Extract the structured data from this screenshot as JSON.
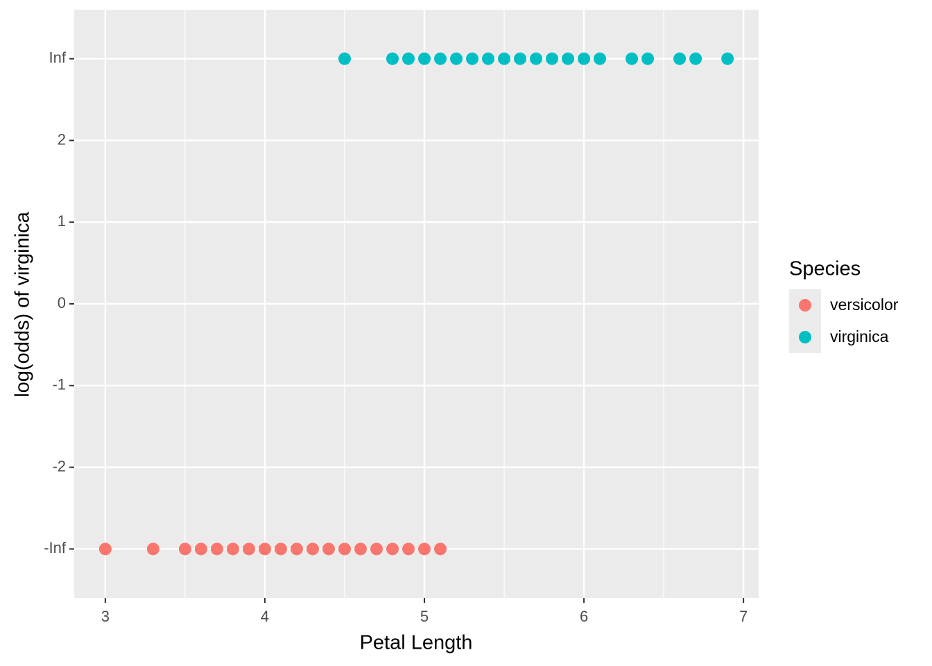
{
  "chart_data": {
    "type": "scatter",
    "x_label": "Petal Length",
    "y_label": "log(odds) of virginica",
    "legend_title": "Species",
    "legend_position": "right",
    "grid": true,
    "xlim": [
      2.805,
      7.095
    ],
    "xticks": [
      3,
      4,
      5,
      6,
      7
    ],
    "xminor": [
      3.5,
      4.5,
      5.5,
      6.5
    ],
    "ylim": [
      -3.6,
      3.6
    ],
    "yticks": [
      {
        "value": -3,
        "label": "-Inf"
      },
      -2,
      -1,
      0,
      1,
      2,
      {
        "value": 3,
        "label": "Inf"
      }
    ],
    "series": [
      {
        "name": "versicolor",
        "color": "#F8766D",
        "x": [
          3.0,
          3.3,
          3.5,
          3.6,
          3.7,
          3.8,
          3.9,
          4.0,
          4.1,
          4.2,
          4.3,
          4.4,
          4.5,
          4.6,
          4.7,
          4.8,
          4.9,
          5.0,
          5.1
        ],
        "values": [
          -3,
          -3,
          -3,
          -3,
          -3,
          -3,
          -3,
          -3,
          -3,
          -3,
          -3,
          -3,
          -3,
          -3,
          -3,
          -3,
          -3,
          -3,
          -3
        ]
      },
      {
        "name": "virginica",
        "color": "#00BFC4",
        "x": [
          4.5,
          4.8,
          4.9,
          5.0,
          5.1,
          5.2,
          5.3,
          5.4,
          5.5,
          5.6,
          5.7,
          5.8,
          5.9,
          6.0,
          6.1,
          6.3,
          6.4,
          6.6,
          6.7,
          6.9
        ],
        "values": [
          3,
          3,
          3,
          3,
          3,
          3,
          3,
          3,
          3,
          3,
          3,
          3,
          3,
          3,
          3,
          3,
          3,
          3,
          3,
          3
        ]
      }
    ]
  }
}
